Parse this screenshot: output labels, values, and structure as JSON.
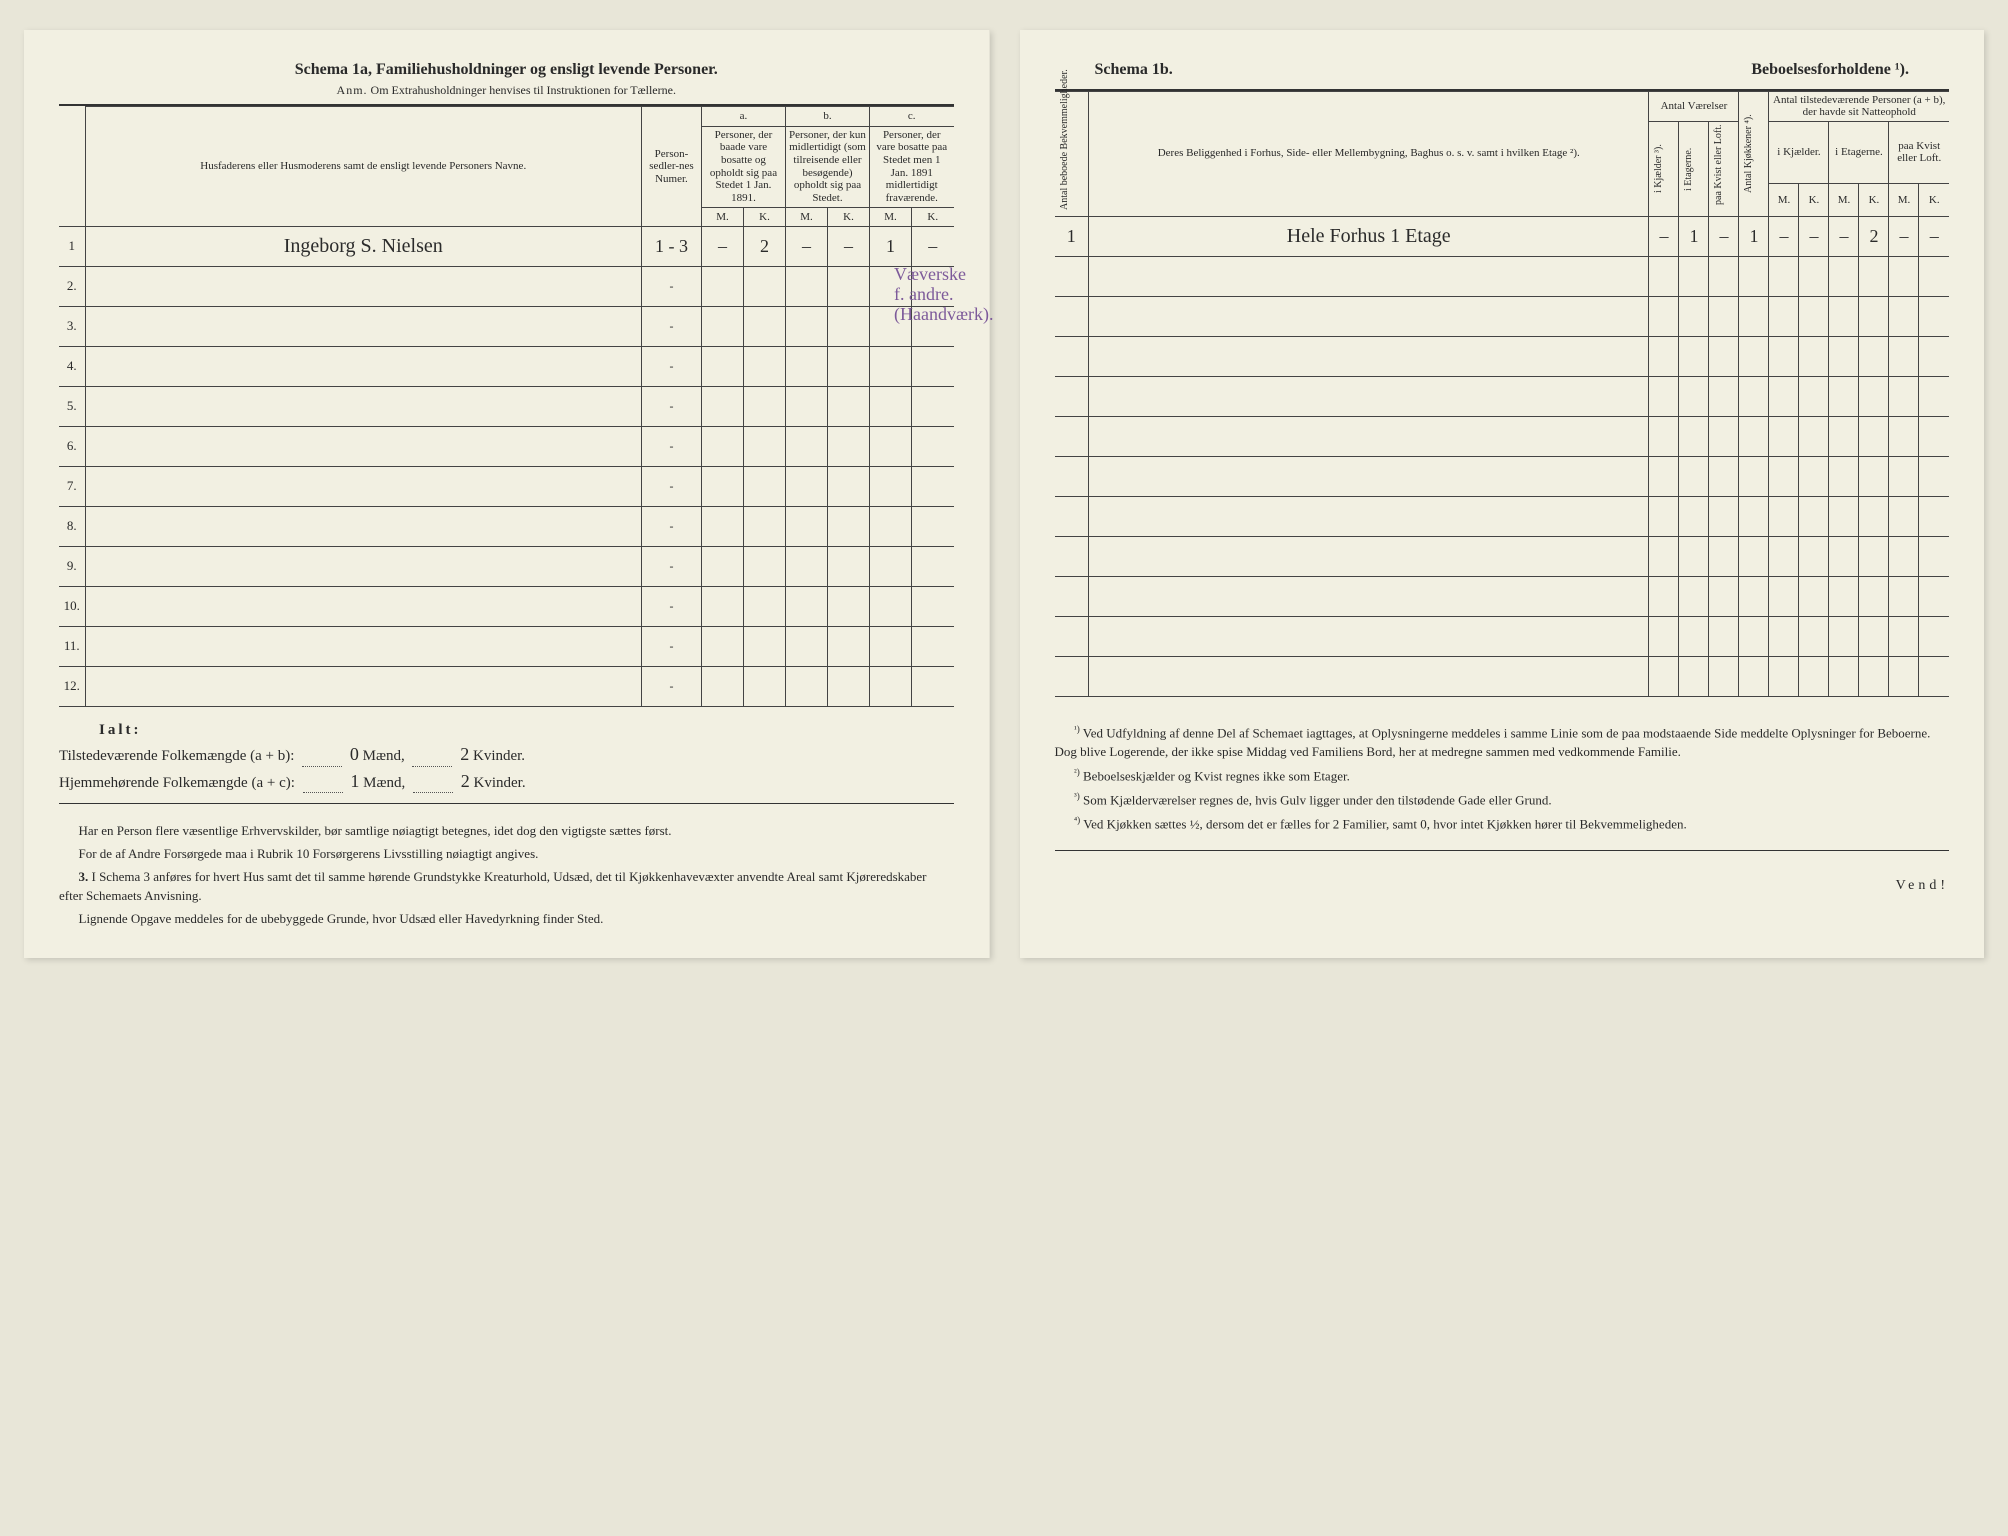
{
  "left": {
    "title_a": "Schema 1a,",
    "title_b": "Familiehusholdninger og ensligt levende Personer.",
    "subtitle_a": "Anm.",
    "subtitle_b": "Om Extrahusholdninger henvises til Instruktionen for Tællerne.",
    "headers": {
      "name": "Husfaderens eller Husmoderens samt de ensligt levende Personers Navne.",
      "num": "Person-sedler-nes Numer.",
      "a_label": "a.",
      "a_text": "Personer, der baade vare bosatte og opholdt sig paa Stedet 1 Jan. 1891.",
      "b_label": "b.",
      "b_text": "Personer, der kun midlertidigt (som tilreisende eller besøgende) opholdt sig paa Stedet.",
      "c_label": "c.",
      "c_text": "Personer, der vare bosatte paa Stedet men 1 Jan. 1891 midlertidigt fraværende.",
      "M": "M.",
      "K": "K."
    },
    "rows": [
      {
        "n": "1",
        "name": "Ingeborg S. Nielsen",
        "num": "1 - 3",
        "aM": "–",
        "aK": "2",
        "bM": "–",
        "bK": "–",
        "cM": "1",
        "cK": "–"
      },
      {
        "n": "2."
      },
      {
        "n": "3."
      },
      {
        "n": "4."
      },
      {
        "n": "5."
      },
      {
        "n": "6."
      },
      {
        "n": "7."
      },
      {
        "n": "8."
      },
      {
        "n": "9."
      },
      {
        "n": "10."
      },
      {
        "n": "11."
      },
      {
        "n": "12."
      }
    ],
    "annotation": {
      "line1": "Væverske",
      "line2": "f. andre.",
      "line3": "(Haandværk)."
    },
    "totals": {
      "ialt": "Ialt:",
      "line1a": "Tilstedeværende Folkemængde (a + b):",
      "line1_m": "0",
      "line1_k": "2",
      "line2a": "Hjemmehørende Folkemængde (a + c):",
      "line2_m": "1",
      "line2_k": "2",
      "maend": "Mænd,",
      "kvinder": "Kvinder."
    },
    "footnotes": {
      "p1": "Har en Person flere væsentlige Erhvervskilder, bør samtlige nøiagtigt betegnes, idet dog den vigtigste sættes først.",
      "p2": "For de af Andre Forsørgede maa i Rubrik 10 Forsørgerens Livsstilling nøiagtigt angives.",
      "p3n": "3.",
      "p3": "I Schema 3 anføres for hvert Hus samt det til samme hørende Grundstykke Kreaturhold, Udsæd, det til Kjøkkenhavevæxter anvendte Areal samt Kjøreredskaber efter Schemaets Anvisning.",
      "p4": "Lignende Opgave meddeles for de ubebyggede Grunde, hvor Udsæd eller Havedyrkning finder Sted."
    }
  },
  "right": {
    "title_a": "Schema 1b.",
    "title_b": "Beboelsesforholdene ¹).",
    "headers": {
      "antal_bek": "Antal beboede Bekvemmeligheder.",
      "belig": "Deres Beliggenhed i Forhus, Side- eller Mellembygning, Baghus o. s. v. samt i hvilken Etage ²).",
      "antal_vaer": "Antal Værelser",
      "kjoek": "Antal Kjøkkener ⁴).",
      "antal_pers": "Antal tilstedeværende Personer (a + b), der havde sit Natteophold",
      "kjae": "i Kjælder ³).",
      "etag": "i Etagerne.",
      "kvist": "paa Kvist eller Loft.",
      "kjae2": "i Kjælder.",
      "etag2": "i Etagerne.",
      "kvist2": "paa Kvist eller Loft.",
      "M": "M.",
      "K": "K."
    },
    "rows": [
      {
        "n": "1",
        "belig": "Hele Forhus 1 Etage",
        "kj": "–",
        "et": "1",
        "kv": "–",
        "kk": "1",
        "km": "–",
        "kk2": "–",
        "em": "–",
        "ek": "2",
        "lm": "–",
        "lk": "–"
      }
    ],
    "footnotes": {
      "f1n": "¹)",
      "f1": "Ved Udfyldning af denne Del af Schemaet iagttages, at Oplysningerne meddeles i samme Linie som de paa modstaaende Side meddelte Oplysninger for Beboerne. Dog blive Logerende, der ikke spise Middag ved Familiens Bord, her at medregne sammen med vedkommende Familie.",
      "f2n": "²)",
      "f2": "Beboelseskjælder og Kvist regnes ikke som Etager.",
      "f3n": "³)",
      "f3": "Som Kjælderværelser regnes de, hvis Gulv ligger under den tilstødende Gade eller Grund.",
      "f4n": "⁴)",
      "f4": "Ved Kjøkken sættes ½, dersom det er fælles for 2 Familier, samt 0, hvor intet Kjøkken hører til Bekvemmeligheden."
    },
    "vend": "Vend!"
  }
}
